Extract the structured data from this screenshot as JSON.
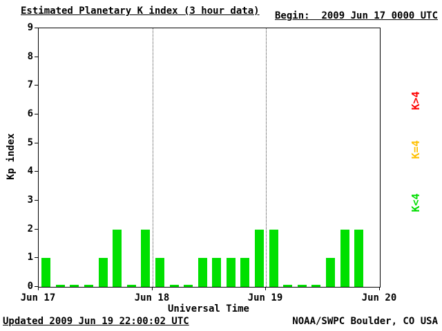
{
  "header": {
    "title": "Estimated Planetary K index (3 hour data)",
    "begin_label": "Begin:",
    "begin_value": "2009 Jun 17 0000 UTC"
  },
  "footer": {
    "updated": "Updated 2009 Jun 19 22:00:02 UTC",
    "source": "NOAA/SWPC Boulder, CO USA"
  },
  "legend": [
    {
      "label": "K>4",
      "color": "#ff0000"
    },
    {
      "label": "K=4",
      "color": "#ffc000"
    },
    {
      "label": "K<4",
      "color": "#00dd00"
    }
  ],
  "chart_data": {
    "type": "bar",
    "title": "Estimated Planetary K index (3 hour data)",
    "xlabel": "Universal Time",
    "ylabel": "Kp index",
    "ylim": [
      0,
      9
    ],
    "yticks": [
      0,
      1,
      2,
      3,
      4,
      5,
      6,
      7,
      8,
      9
    ],
    "xticks": [
      "Jun 17",
      "Jun 18",
      "Jun 19",
      "Jun 20"
    ],
    "interval_hours": 3,
    "total_slots": 24,
    "grid": "dotted vertical lines at day boundaries",
    "legend_position": "right, rotated",
    "bar_colors": {
      "lt4": "#00e000",
      "eq4": "#ffc000",
      "gt4": "#ff0000"
    },
    "values": [
      1,
      0,
      0,
      0,
      1,
      2,
      0,
      2,
      1,
      0,
      0,
      1,
      1,
      1,
      1,
      2,
      2,
      0,
      0,
      0,
      1,
      2,
      2
    ]
  }
}
